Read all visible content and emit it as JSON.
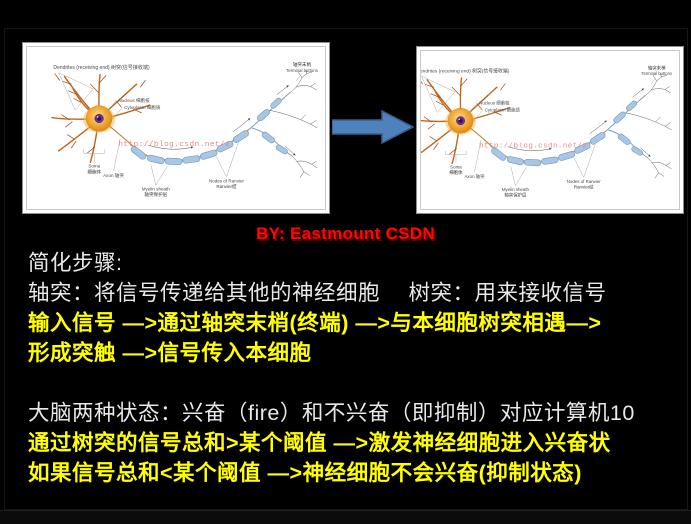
{
  "slide": {
    "byline": "BY: Eastmount CSDN",
    "colors": {
      "background": "#000000",
      "byline_red": "#ff0600",
      "emphasis_yellow": "#ffff00",
      "body_white": "#e9e9e9",
      "arrow_blue": "#4f81bd",
      "myelin_blue": "#a9c7e4",
      "soma_orange": "#f0a32e",
      "nucleus_purple": "#6b2f9e",
      "watermark_pink": "#e57373"
    }
  },
  "diagram": {
    "labels": {
      "dendrites": "Dendrites (receiving end) 树突(信号接收端)",
      "nucleus": "Nucleus 细胞核",
      "cytoplasm": "Cytoplasm 细胞质",
      "watermark": "http://blog.csdn.net/z",
      "soma_en": "Soma",
      "soma_cn": "细胞体",
      "axon": "Axon 轴突",
      "myelin_en": "Myelin sheath",
      "myelin_cn": "轴突保护层",
      "nodes_en": "Nodes of Ranvier",
      "nodes_cn": "Ranvier结",
      "terminal_cn": "轴突末梢",
      "terminal_en": "Terminal buttons"
    }
  },
  "body_text": {
    "lines": [
      {
        "text": "简化步骤:",
        "style": "white"
      },
      {
        "text": "轴突：将信号传递给其他的神经细胞　 树突：用来接收信号",
        "style": "white"
      },
      {
        "text": "输入信号 —>通过轴突末梢(终端) —>与本细胞树突相遇—>",
        "style": "yellow"
      },
      {
        "text": "形成突触 —>信号传入本细胞",
        "style": "yellow"
      },
      {
        "text": "",
        "style": "white"
      },
      {
        "text": "大脑两种状态：兴奋（fire）和不兴奋（即抑制）对应计算机10",
        "style": "white"
      },
      {
        "text": "通过树突的信号总和>某个阈值 —>激发神经细胞进入兴奋状",
        "style": "yellow"
      },
      {
        "text": "如果信号总和<某个阈值 —>神经细胞不会兴奋(抑制状态)",
        "style": "yellow"
      }
    ]
  }
}
